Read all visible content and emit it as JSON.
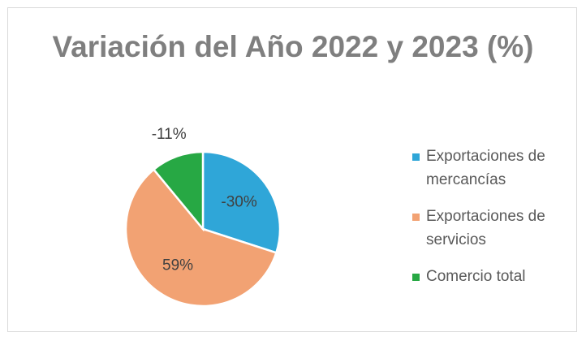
{
  "chart_data": {
    "type": "pie",
    "title": "Variación del Año 2022 y 2023 (%)",
    "categories": [
      "Exportaciones de mercancías",
      "Exportaciones de servicios",
      "Comercio total"
    ],
    "values": [
      -30,
      59,
      -11
    ],
    "value_labels": [
      "-30%",
      "59%",
      "-11%"
    ],
    "colors": [
      "#2fa6d8",
      "#f2a273",
      "#27a844"
    ],
    "legend": "right"
  }
}
